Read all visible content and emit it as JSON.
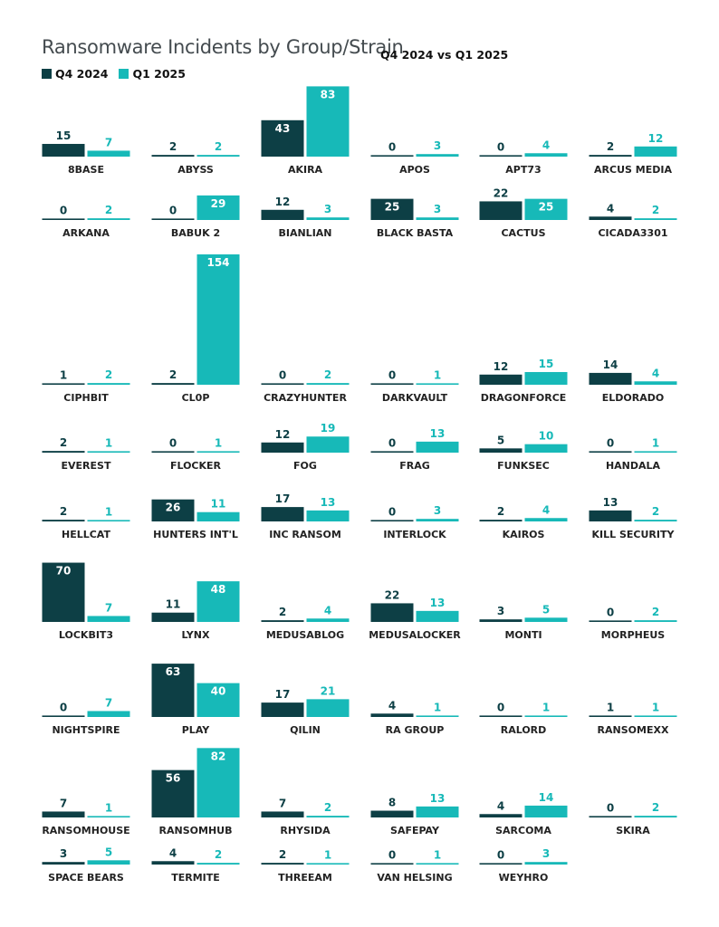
{
  "colors": {
    "q4": "#0d3f45",
    "q1": "#17b9b8",
    "text": "#222222"
  },
  "chart_data": {
    "type": "bar",
    "title": "Ransomware Incidents by Group/Strain",
    "subtitle": "Q4 2024 vs Q1 2025",
    "legend_position": "top-left",
    "layout": "small-multiples",
    "series": [
      {
        "name": "Q4 2024",
        "color": "#0d3f45"
      },
      {
        "name": "Q1 2025",
        "color": "#17b9b8"
      }
    ],
    "groups": [
      {
        "name": "8BASE",
        "q4": 15,
        "q1": 7
      },
      {
        "name": "ABYSS",
        "q4": 2,
        "q1": 2
      },
      {
        "name": "AKIRA",
        "q4": 43,
        "q1": 83
      },
      {
        "name": "APOS",
        "q4": 0,
        "q1": 3
      },
      {
        "name": "APT73",
        "q4": 0,
        "q1": 4
      },
      {
        "name": "ARCUS MEDIA",
        "q4": 2,
        "q1": 12
      },
      {
        "name": "ARKANA",
        "q4": 0,
        "q1": 2
      },
      {
        "name": "BABUK 2",
        "q4": 0,
        "q1": 29
      },
      {
        "name": "BIANLIAN",
        "q4": 12,
        "q1": 3
      },
      {
        "name": "BLACK BASTA",
        "q4": 25,
        "q1": 3
      },
      {
        "name": "CACTUS",
        "q4": 22,
        "q1": 25
      },
      {
        "name": "CICADA3301",
        "q4": 4,
        "q1": 2
      },
      {
        "name": "CIPHBIT",
        "q4": 1,
        "q1": 2
      },
      {
        "name": "CL0P",
        "q4": 2,
        "q1": 154
      },
      {
        "name": "CRAZYHUNTER",
        "q4": 0,
        "q1": 2
      },
      {
        "name": "DARKVAULT",
        "q4": 0,
        "q1": 1
      },
      {
        "name": "DRAGONFORCE",
        "q4": 12,
        "q1": 15
      },
      {
        "name": "ELDORADO",
        "q4": 14,
        "q1": 4
      },
      {
        "name": "EVEREST",
        "q4": 2,
        "q1": 1
      },
      {
        "name": "FLOCKER",
        "q4": 0,
        "q1": 1
      },
      {
        "name": "FOG",
        "q4": 12,
        "q1": 19
      },
      {
        "name": "FRAG",
        "q4": 0,
        "q1": 13
      },
      {
        "name": "FUNKSEC",
        "q4": 5,
        "q1": 10
      },
      {
        "name": "HANDALA",
        "q4": 0,
        "q1": 1
      },
      {
        "name": "HELLCAT",
        "q4": 2,
        "q1": 1
      },
      {
        "name": "HUNTERS INT'L",
        "q4": 26,
        "q1": 11
      },
      {
        "name": "INC RANSOM",
        "q4": 17,
        "q1": 13
      },
      {
        "name": "INTERLOCK",
        "q4": 0,
        "q1": 3
      },
      {
        "name": "KAIROS",
        "q4": 2,
        "q1": 4
      },
      {
        "name": "KILL SECURITY",
        "q4": 13,
        "q1": 2
      },
      {
        "name": "LOCKBIT3",
        "q4": 70,
        "q1": 7
      },
      {
        "name": "LYNX",
        "q4": 11,
        "q1": 48
      },
      {
        "name": "MEDUSABLOG",
        "q4": 2,
        "q1": 4
      },
      {
        "name": "MEDUSALOCKER",
        "q4": 22,
        "q1": 13
      },
      {
        "name": "MONTI",
        "q4": 3,
        "q1": 5
      },
      {
        "name": "MORPHEUS",
        "q4": 0,
        "q1": 2
      },
      {
        "name": "NIGHTSPIRE",
        "q4": 0,
        "q1": 7
      },
      {
        "name": "PLAY",
        "q4": 63,
        "q1": 40
      },
      {
        "name": "QILIN",
        "q4": 17,
        "q1": 21
      },
      {
        "name": "RA GROUP",
        "q4": 4,
        "q1": 1
      },
      {
        "name": "RALORD",
        "q4": 0,
        "q1": 1
      },
      {
        "name": "RANSOMEXX",
        "q4": 1,
        "q1": 1
      },
      {
        "name": "RANSOMHOUSE",
        "q4": 7,
        "q1": 1
      },
      {
        "name": "RANSOMHUB",
        "q4": 56,
        "q1": 82
      },
      {
        "name": "RHYSIDA",
        "q4": 7,
        "q1": 2
      },
      {
        "name": "SAFEPAY",
        "q4": 8,
        "q1": 13
      },
      {
        "name": "SARCOMA",
        "q4": 4,
        "q1": 14
      },
      {
        "name": "SKIRA",
        "q4": 0,
        "q1": 2
      },
      {
        "name": "SPACE BEARS",
        "q4": 3,
        "q1": 5
      },
      {
        "name": "TERMITE",
        "q4": 4,
        "q1": 2
      },
      {
        "name": "THREEAM",
        "q4": 2,
        "q1": 1
      },
      {
        "name": "VAN HELSING",
        "q4": 0,
        "q1": 1
      },
      {
        "name": "WEYHRO",
        "q4": 0,
        "q1": 3
      }
    ]
  }
}
